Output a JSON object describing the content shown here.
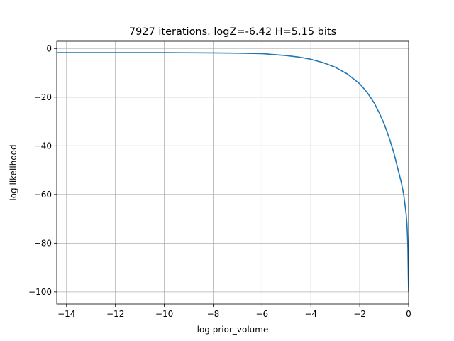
{
  "chart_data": {
    "type": "line",
    "title": "7927 iterations. logZ=-6.42 H=5.15 bits",
    "xlabel": "log prior_volume",
    "ylabel": "log likelihood",
    "xlim": [
      -14.4,
      0
    ],
    "ylim": [
      -105,
      3
    ],
    "grid": true,
    "xticks": [
      -14,
      -12,
      -10,
      -8,
      -6,
      -4,
      -2,
      0
    ],
    "yticks": [
      0,
      -20,
      -40,
      -60,
      -80,
      -100
    ],
    "xtick_labels": [
      "−14",
      "−12",
      "−10",
      "−8",
      "−6",
      "−4",
      "−2",
      "0"
    ],
    "ytick_labels": [
      "0",
      "−20",
      "−40",
      "−60",
      "−80",
      "−100"
    ],
    "series": [
      {
        "color": "#1f77b4",
        "x": [
          -14.4,
          -14,
          -12,
          -10,
          -8,
          -7,
          -6,
          -5.5,
          -5,
          -4.5,
          -4,
          -3.5,
          -3,
          -2.5,
          -2,
          -1.7,
          -1.4,
          -1.2,
          -1,
          -0.8,
          -0.6,
          -0.5,
          -0.4,
          -0.3,
          -0.2,
          -0.15,
          -0.1,
          -0.07,
          -0.05,
          -0.03,
          -0.02,
          -0.01,
          0
        ],
        "y": [
          -1.7,
          -1.7,
          -1.7,
          -1.7,
          -1.8,
          -1.9,
          -2.1,
          -2.5,
          -2.9,
          -3.5,
          -4.4,
          -5.8,
          -7.7,
          -10.5,
          -14.5,
          -18,
          -22.5,
          -26.5,
          -31,
          -36.5,
          -43,
          -47,
          -51,
          -55,
          -60,
          -64,
          -68,
          -72,
          -76,
          -82,
          -88,
          -95,
          -100
        ]
      }
    ]
  }
}
